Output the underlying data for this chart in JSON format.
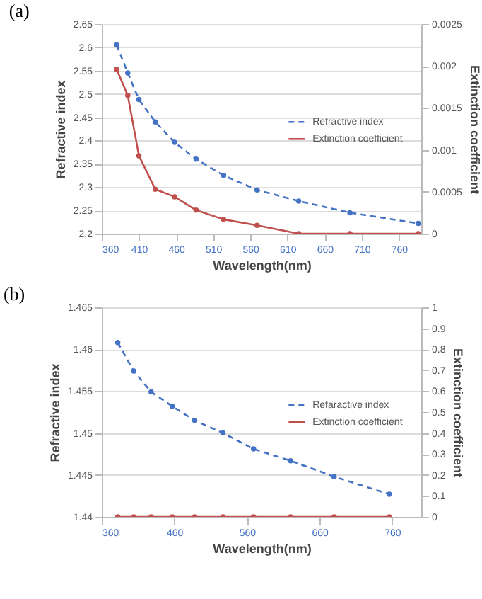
{
  "chart_data": [
    {
      "type": "line",
      "title": "(a)",
      "xlabel": "Wavelength(nm)",
      "ylabel": "Refractive index",
      "y2label": "Extinction coefficient",
      "x": [
        380,
        395,
        410,
        432,
        458,
        487,
        524,
        569,
        625,
        694,
        786
      ],
      "series": [
        {
          "name": "Refractive index",
          "color": "#4472c4",
          "line_style": "dashed",
          "values": [
            2.605,
            2.545,
            2.488,
            2.44,
            2.396,
            2.36,
            2.325,
            2.294,
            2.27,
            2.245,
            2.222
          ]
        },
        {
          "name": "Extinction coefficient",
          "color": "#c0504d",
          "line_style": "solid",
          "axis": "y2",
          "values": [
            0.00196,
            0.00165,
            0.00093,
            0.00053,
            0.00044,
            0.00028,
            0.00017,
            0.0001,
            0,
            0,
            0
          ]
        }
      ],
      "xlim": [
        360,
        790
      ],
      "xticks": [
        360,
        410,
        460,
        510,
        560,
        610,
        660,
        710,
        760
      ],
      "ylim": [
        2.2,
        2.65
      ],
      "yticks": [
        2.2,
        2.25,
        2.3,
        2.35,
        2.4,
        2.45,
        2.5,
        2.55,
        2.6,
        2.65
      ],
      "y2lim": [
        0,
        0.0025
      ],
      "y2ticks": [
        0,
        0.0005,
        0.001,
        0.0015,
        0.002,
        0.0025
      ],
      "grid": "y",
      "legend": "right",
      "marker": "circle"
    },
    {
      "type": "line",
      "title": "(b)",
      "xlabel": "Wavelength(nm)",
      "ylabel": "Refractive index",
      "y2label": "Extinction coefficient",
      "x": [
        382,
        404,
        428,
        457,
        488,
        527,
        569,
        620,
        680,
        756
      ],
      "series": [
        {
          "name": "Refaractive index",
          "color": "#4472c4",
          "line_style": "dashed",
          "values": [
            1.4608,
            1.4574,
            1.4549,
            1.4532,
            1.4515,
            1.45,
            1.4481,
            1.4467,
            1.4448,
            1.4427
          ]
        },
        {
          "name": "Extinction coefficient",
          "color": "#c0504d",
          "line_style": "solid",
          "axis": "y2",
          "values": [
            0,
            0,
            0,
            0,
            0,
            0,
            0,
            0,
            0,
            0
          ]
        }
      ],
      "xlim": [
        360,
        800
      ],
      "xticks": [
        360,
        460,
        560,
        660,
        760
      ],
      "ylim": [
        1.44,
        1.465
      ],
      "yticks": [
        1.44,
        1.445,
        1.45,
        1.455,
        1.46,
        1.465
      ],
      "y2lim": [
        0,
        1
      ],
      "y2ticks": [
        0,
        0.1,
        0.2,
        0.3,
        0.4,
        0.5,
        0.6,
        0.7,
        0.8,
        0.9,
        1
      ],
      "grid": "y",
      "legend": "right",
      "marker": "circle"
    }
  ]
}
